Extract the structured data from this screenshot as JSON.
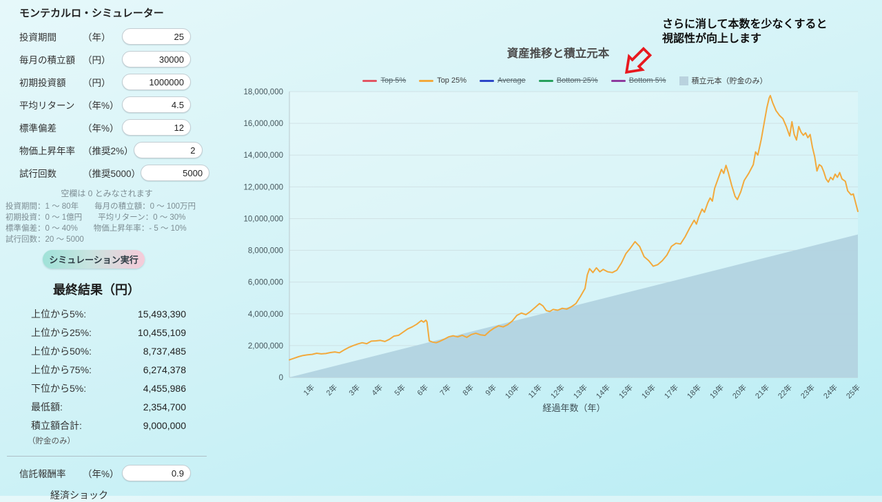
{
  "sidebar": {
    "title": "モンテカルロ・シミュレーター",
    "fields": [
      {
        "label": "投資期間",
        "unit": "（年）",
        "value": "25"
      },
      {
        "label": "毎月の積立額",
        "unit": "（円）",
        "value": "30000"
      },
      {
        "label": "初期投資額",
        "unit": "（円）",
        "value": "1000000"
      },
      {
        "label": "平均リターン",
        "unit": "（年%）",
        "value": "4.5"
      },
      {
        "label": "標準偏差",
        "unit": "（年%）",
        "value": "12"
      },
      {
        "label": "物価上昇年率",
        "unit": "（推奨2%）",
        "value": "2"
      },
      {
        "label": "試行回数",
        "unit": "（推奨5000）",
        "value": "5000"
      }
    ],
    "hint_first": "空欄は 0 とみなされます",
    "hints": [
      "投資期間：1 ～ 80年　　毎月の積立額：0 ～ 100万円",
      "初期投資：0 ～ 1億円　　平均リターン：0 ～ 30%",
      "標準偏差：0 ～ 40%　　物価上昇年率：- 5 ～ 10%",
      "試行回数：20 ～ 5000"
    ],
    "run_button": "シミュレーション実行"
  },
  "results": {
    "heading": "最終結果（円）",
    "rows": [
      {
        "label": "上位から5%:",
        "value": "15,493,390"
      },
      {
        "label": "上位から25%:",
        "value": "10,455,109"
      },
      {
        "label": "上位から50%:",
        "value": "8,737,485"
      },
      {
        "label": "上位から75%:",
        "value": "6,274,378"
      },
      {
        "label": "下位から5%:",
        "value": "4,455,986"
      },
      {
        "label": "最低額:",
        "value": "2,354,700"
      },
      {
        "label": "積立額合計:",
        "value": "9,000,000"
      }
    ],
    "note": "（貯金のみ）"
  },
  "fee": {
    "label": "信託報酬率",
    "unit": "（年%）",
    "value": "0.9"
  },
  "shock_label": "経済ショック",
  "annotation": {
    "line1": "さらに消して本数を少なくすると",
    "line2": "視認性が向上します"
  },
  "chart_data": {
    "type": "line",
    "title": "資産推移と積立元本",
    "xlabel": "経過年数（年）",
    "ylim": [
      0,
      18000000
    ],
    "xlim": [
      0,
      25
    ],
    "grid": true,
    "y_ticks": [
      0,
      2000000,
      4000000,
      6000000,
      8000000,
      10000000,
      12000000,
      14000000,
      16000000,
      18000000
    ],
    "x_ticks": [
      "1年",
      "2年",
      "3年",
      "4年",
      "5年",
      "6年",
      "7年",
      "8年",
      "9年",
      "10年",
      "11年",
      "12年",
      "13年",
      "14年",
      "15年",
      "16年",
      "17年",
      "18年",
      "19年",
      "20年",
      "21年",
      "22年",
      "23年",
      "24年",
      "25年"
    ],
    "legend": [
      {
        "label": "Top 5%",
        "color": "#e25563",
        "struck": true,
        "swatch": "line"
      },
      {
        "label": "Top 25%",
        "color": "#f2a93c",
        "struck": false,
        "swatch": "line"
      },
      {
        "label": "Average",
        "color": "#2b46c8",
        "struck": true,
        "swatch": "line"
      },
      {
        "label": "Bottom 25%",
        "color": "#27a05c",
        "struck": true,
        "swatch": "line"
      },
      {
        "label": "Bottom 5%",
        "color": "#8d3a9e",
        "struck": true,
        "swatch": "line"
      },
      {
        "label": "積立元本（貯金のみ）",
        "color": "#b9d2de",
        "struck": false,
        "swatch": "area"
      }
    ],
    "series": [
      {
        "name": "Top 25%",
        "color": "#f2a93c",
        "points": [
          [
            0,
            1100000
          ],
          [
            0.2,
            1200000
          ],
          [
            0.4,
            1300000
          ],
          [
            0.6,
            1380000
          ],
          [
            0.8,
            1420000
          ],
          [
            1,
            1450000
          ],
          [
            1.2,
            1520000
          ],
          [
            1.4,
            1480000
          ],
          [
            1.6,
            1500000
          ],
          [
            1.8,
            1560000
          ],
          [
            2,
            1600000
          ],
          [
            2.2,
            1550000
          ],
          [
            2.4,
            1720000
          ],
          [
            2.6,
            1880000
          ],
          [
            2.8,
            2000000
          ],
          [
            3,
            2100000
          ],
          [
            3.2,
            2180000
          ],
          [
            3.4,
            2120000
          ],
          [
            3.6,
            2280000
          ],
          [
            3.8,
            2300000
          ],
          [
            4,
            2330000
          ],
          [
            4.2,
            2260000
          ],
          [
            4.4,
            2400000
          ],
          [
            4.6,
            2600000
          ],
          [
            4.8,
            2650000
          ],
          [
            5,
            2850000
          ],
          [
            5.2,
            3050000
          ],
          [
            5.4,
            3180000
          ],
          [
            5.6,
            3350000
          ],
          [
            5.8,
            3580000
          ],
          [
            5.9,
            3480000
          ],
          [
            6,
            3600000
          ],
          [
            6.05,
            3500000
          ],
          [
            6.15,
            2300000
          ],
          [
            6.3,
            2220000
          ],
          [
            6.45,
            2180000
          ],
          [
            6.6,
            2260000
          ],
          [
            6.8,
            2400000
          ],
          [
            7,
            2550000
          ],
          [
            7.2,
            2620000
          ],
          [
            7.4,
            2550000
          ],
          [
            7.6,
            2650000
          ],
          [
            7.8,
            2520000
          ],
          [
            8,
            2700000
          ],
          [
            8.2,
            2780000
          ],
          [
            8.4,
            2680000
          ],
          [
            8.6,
            2640000
          ],
          [
            8.8,
            2900000
          ],
          [
            9,
            3100000
          ],
          [
            9.2,
            3250000
          ],
          [
            9.4,
            3180000
          ],
          [
            9.6,
            3320000
          ],
          [
            9.8,
            3550000
          ],
          [
            10,
            3900000
          ],
          [
            10.2,
            4050000
          ],
          [
            10.4,
            3950000
          ],
          [
            10.6,
            4150000
          ],
          [
            10.8,
            4400000
          ],
          [
            11,
            4650000
          ],
          [
            11.15,
            4500000
          ],
          [
            11.3,
            4200000
          ],
          [
            11.45,
            4150000
          ],
          [
            11.6,
            4280000
          ],
          [
            11.8,
            4230000
          ],
          [
            12,
            4350000
          ],
          [
            12.2,
            4300000
          ],
          [
            12.4,
            4450000
          ],
          [
            12.6,
            4650000
          ],
          [
            12.8,
            5100000
          ],
          [
            13,
            5600000
          ],
          [
            13.1,
            6450000
          ],
          [
            13.2,
            6850000
          ],
          [
            13.35,
            6600000
          ],
          [
            13.5,
            6900000
          ],
          [
            13.65,
            6650000
          ],
          [
            13.8,
            6800000
          ],
          [
            14,
            6650000
          ],
          [
            14.2,
            6600000
          ],
          [
            14.4,
            6750000
          ],
          [
            14.6,
            7200000
          ],
          [
            14.8,
            7800000
          ],
          [
            15,
            8150000
          ],
          [
            15.2,
            8550000
          ],
          [
            15.4,
            8250000
          ],
          [
            15.6,
            7600000
          ],
          [
            15.8,
            7350000
          ],
          [
            16,
            7000000
          ],
          [
            16.2,
            7100000
          ],
          [
            16.4,
            7350000
          ],
          [
            16.6,
            7700000
          ],
          [
            16.8,
            8250000
          ],
          [
            17,
            8450000
          ],
          [
            17.2,
            8400000
          ],
          [
            17.4,
            8850000
          ],
          [
            17.6,
            9400000
          ],
          [
            17.8,
            9900000
          ],
          [
            17.9,
            9650000
          ],
          [
            18,
            10100000
          ],
          [
            18.15,
            10600000
          ],
          [
            18.25,
            10400000
          ],
          [
            18.4,
            11000000
          ],
          [
            18.5,
            11300000
          ],
          [
            18.6,
            11100000
          ],
          [
            18.7,
            11900000
          ],
          [
            18.85,
            12500000
          ],
          [
            19,
            13100000
          ],
          [
            19.1,
            12850000
          ],
          [
            19.2,
            13350000
          ],
          [
            19.3,
            12900000
          ],
          [
            19.45,
            12100000
          ],
          [
            19.6,
            11400000
          ],
          [
            19.7,
            11200000
          ],
          [
            19.85,
            11700000
          ],
          [
            20,
            12400000
          ],
          [
            20.2,
            12850000
          ],
          [
            20.4,
            13400000
          ],
          [
            20.5,
            14200000
          ],
          [
            20.6,
            14000000
          ],
          [
            20.75,
            15000000
          ],
          [
            20.9,
            16200000
          ],
          [
            21,
            17000000
          ],
          [
            21.1,
            17600000
          ],
          [
            21.15,
            17750000
          ],
          [
            21.25,
            17300000
          ],
          [
            21.4,
            16800000
          ],
          [
            21.55,
            16500000
          ],
          [
            21.7,
            16300000
          ],
          [
            21.85,
            15800000
          ],
          [
            22,
            15200000
          ],
          [
            22.1,
            16100000
          ],
          [
            22.2,
            15300000
          ],
          [
            22.3,
            14950000
          ],
          [
            22.4,
            15800000
          ],
          [
            22.5,
            15450000
          ],
          [
            22.6,
            15250000
          ],
          [
            22.7,
            15400000
          ],
          [
            22.8,
            15100000
          ],
          [
            22.9,
            15300000
          ],
          [
            23,
            14500000
          ],
          [
            23.1,
            13900000
          ],
          [
            23.2,
            13000000
          ],
          [
            23.3,
            13400000
          ],
          [
            23.4,
            13300000
          ],
          [
            23.5,
            12950000
          ],
          [
            23.6,
            12500000
          ],
          [
            23.7,
            12300000
          ],
          [
            23.8,
            12600000
          ],
          [
            23.9,
            12450000
          ],
          [
            24,
            12800000
          ],
          [
            24.1,
            12600000
          ],
          [
            24.2,
            12900000
          ],
          [
            24.3,
            12500000
          ],
          [
            24.45,
            12350000
          ],
          [
            24.55,
            11750000
          ],
          [
            24.7,
            11500000
          ],
          [
            24.8,
            11550000
          ],
          [
            24.9,
            11000000
          ],
          [
            25,
            10455109
          ]
        ]
      }
    ],
    "area": {
      "name": "積立元本（貯金のみ）",
      "color": "#b2d3e0",
      "points": [
        [
          0,
          0
        ],
        [
          25,
          9000000
        ]
      ]
    },
    "colors": {
      "grid": "#c9d8dc",
      "axis": "#b9c9ce",
      "tick_text": "#45565c"
    }
  }
}
